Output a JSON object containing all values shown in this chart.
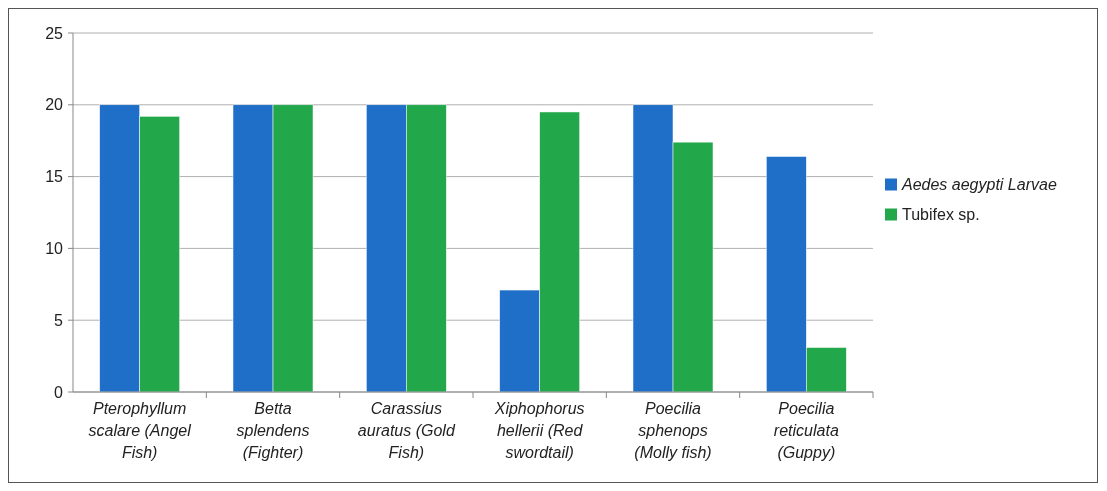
{
  "chart_data": {
    "type": "bar",
    "categories": [
      "Pterophyllum scalare (Angel Fish)",
      "Betta splendens (Fighter)",
      "Carassius auratus (Gold Fish)",
      "Xiphophorus hellerii (Red swordtail)",
      "Poecilia sphenops (Molly fish)",
      "Poecilia reticulata (Guppy)"
    ],
    "series": [
      {
        "name": "Aedes aegypti Larvae",
        "color": "#1f6fc8",
        "values": [
          20,
          20,
          20,
          7.1,
          20,
          16.4
        ]
      },
      {
        "name": "Tubifex sp.",
        "color": "#22a84a",
        "values": [
          19.2,
          20,
          20,
          19.5,
          17.4,
          3.1
        ]
      }
    ],
    "ylim": [
      0,
      25
    ],
    "yticks": [
      0,
      5,
      10,
      15,
      20,
      25
    ],
    "grid": "y",
    "legend": "right"
  }
}
